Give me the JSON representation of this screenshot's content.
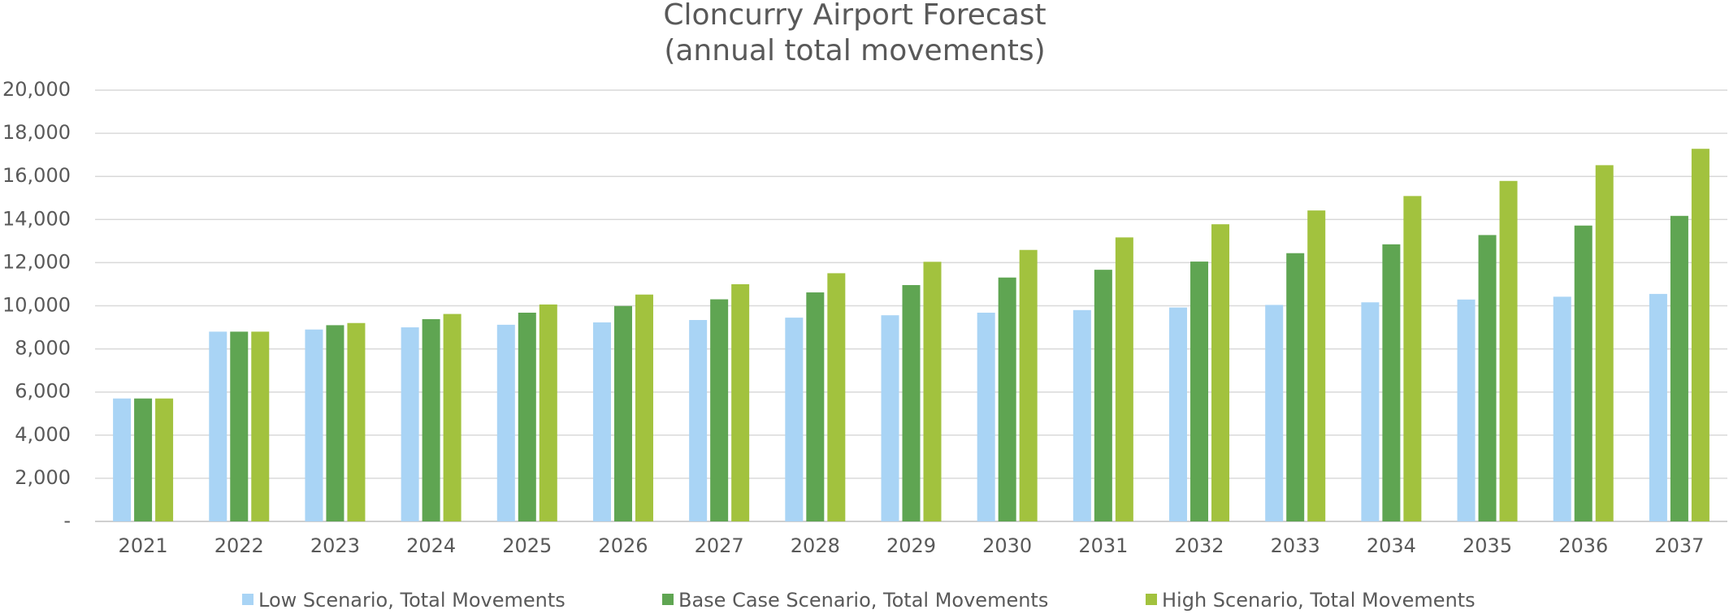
{
  "chart_data": {
    "type": "bar",
    "title": "Cloncurry Airport Forecast",
    "subtitle": "(annual total movements)",
    "categories": [
      "2021",
      "2022",
      "2023",
      "2024",
      "2025",
      "2026",
      "2027",
      "2028",
      "2029",
      "2030",
      "2031",
      "2032",
      "2033",
      "2034",
      "2035",
      "2036",
      "2037"
    ],
    "series": [
      {
        "name": "Low Scenario, Total Movements",
        "color": "#a9d4f5",
        "values": [
          5700,
          8800,
          8900,
          9000,
          9120,
          9230,
          9340,
          9450,
          9560,
          9680,
          9800,
          9920,
          10040,
          10160,
          10290,
          10420,
          10550
        ]
      },
      {
        "name": "Base Case Scenario, Total Movements",
        "color": "#5fa552",
        "values": [
          5700,
          8800,
          9100,
          9380,
          9680,
          9990,
          10300,
          10620,
          10960,
          11310,
          11670,
          12050,
          12440,
          12850,
          13280,
          13720,
          14170
        ]
      },
      {
        "name": "High Scenario, Total Movements",
        "color": "#a2c23e",
        "values": [
          5700,
          8800,
          9200,
          9620,
          10060,
          10520,
          11000,
          11510,
          12040,
          12590,
          13170,
          13780,
          14420,
          15090,
          15790,
          16520,
          17280
        ]
      }
    ],
    "ylim": [
      0,
      20000
    ],
    "yticks": [
      {
        "value": 0,
        "label": "-"
      },
      {
        "value": 2000,
        "label": "2,000"
      },
      {
        "value": 4000,
        "label": "4,000"
      },
      {
        "value": 6000,
        "label": "6,000"
      },
      {
        "value": 8000,
        "label": "8,000"
      },
      {
        "value": 10000,
        "label": "10,000"
      },
      {
        "value": 12000,
        "label": "12,000"
      },
      {
        "value": 14000,
        "label": "14,000"
      },
      {
        "value": 16000,
        "label": "16,000"
      },
      {
        "value": 18000,
        "label": "18,000"
      },
      {
        "value": 20000,
        "label": "20,000"
      }
    ],
    "grid": true,
    "legend": "bottom"
  }
}
